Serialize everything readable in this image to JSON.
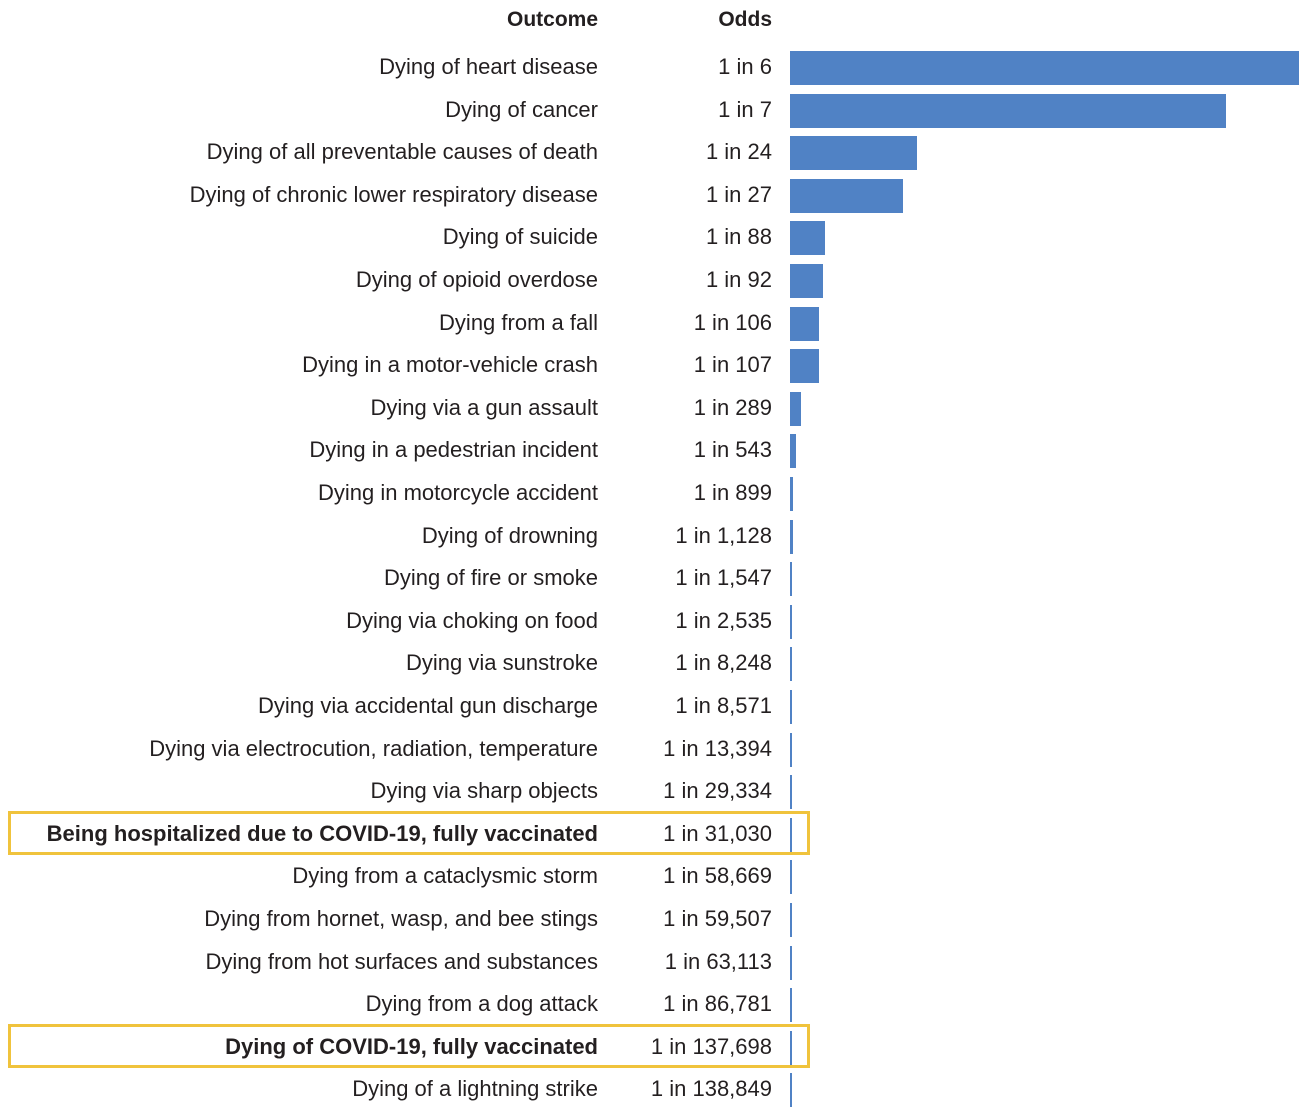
{
  "headers": {
    "outcome": "Outcome",
    "odds": "Odds"
  },
  "colors": {
    "bar": "#5082c5",
    "highlight": "#f0c33c",
    "text": "#231f20"
  },
  "chart_data": {
    "type": "bar",
    "orientation": "horizontal",
    "value_meaning": "probability (1 / odds denominator)",
    "categories": [
      "Dying of heart disease",
      "Dying of cancer",
      "Dying of all preventable causes of death",
      "Dying of chronic lower respiratory disease",
      "Dying of suicide",
      "Dying of opioid overdose",
      "Dying from a fall",
      "Dying in a motor-vehicle crash",
      "Dying via a gun assault",
      "Dying in a pedestrian incident",
      "Dying in motorcycle accident",
      "Dying of drowning",
      "Dying of fire or smoke",
      "Dying via choking on food",
      "Dying via sunstroke",
      "Dying via accidental gun discharge",
      "Dying via electrocution, radiation, temperature",
      "Dying via sharp objects",
      "Being hospitalized due to COVID-19, fully vaccinated",
      "Dying from a cataclysmic storm",
      "Dying from hornet, wasp, and bee stings",
      "Dying from hot surfaces and substances",
      "Dying from a dog attack",
      "Dying of COVID-19, fully vaccinated",
      "Dying of a lightning strike"
    ],
    "odds_labels": [
      "1 in 6",
      "1 in 7",
      "1 in 24",
      "1 in 27",
      "1 in 88",
      "1 in 92",
      "1 in 106",
      "1 in 107",
      "1 in 289",
      "1 in 543",
      "1 in 899",
      "1 in 1,128",
      "1 in 1,547",
      "1 in 2,535",
      "1 in 8,248",
      "1 in 8,571",
      "1 in 13,394",
      "1 in 29,334",
      "1 in 31,030",
      "1 in 58,669",
      "1 in 59,507",
      "1 in 63,113",
      "1 in 86,781",
      "1 in 137,698",
      "1 in 138,849"
    ],
    "odds_denominators": [
      6,
      7,
      24,
      27,
      88,
      92,
      106,
      107,
      289,
      543,
      899,
      1128,
      1547,
      2535,
      8248,
      8571,
      13394,
      29334,
      31030,
      58669,
      59507,
      63113,
      86781,
      137698,
      138849
    ],
    "highlighted": [
      "Being hospitalized due to COVID-19, fully vaccinated",
      "Dying of COVID-19, fully vaccinated"
    ],
    "grid": false,
    "legend": "none"
  }
}
